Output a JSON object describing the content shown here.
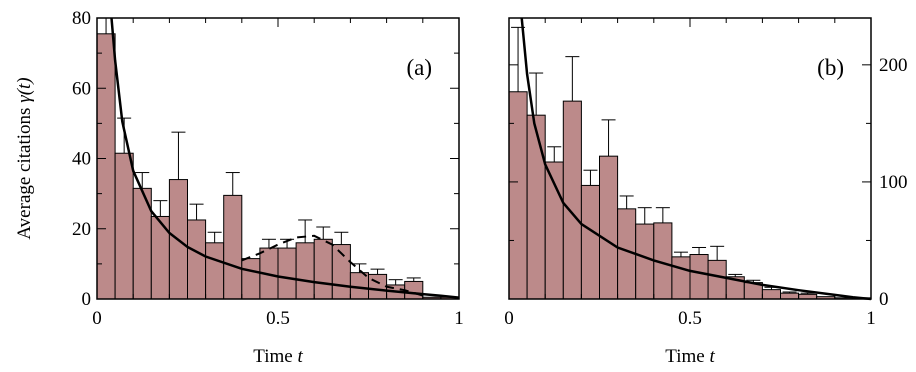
{
  "chart_data": [
    {
      "type": "bar",
      "panel_label": "(a)",
      "ylabel": "Average citations γ(t)",
      "xlabel": "Time t",
      "xlim": [
        0,
        1
      ],
      "ylim": [
        0,
        80
      ],
      "x_ticks": [
        0,
        0.5,
        1
      ],
      "x_tick_labels": [
        "0",
        "0.5",
        "1"
      ],
      "y_ticks": [
        0,
        20,
        40,
        60,
        80
      ],
      "y_tick_labels": [
        "0",
        "20",
        "40",
        "60",
        "80"
      ],
      "y_axis_side": "left",
      "bin_width": 0.05,
      "bin_starts": [
        0,
        0.05,
        0.1,
        0.15,
        0.2,
        0.25,
        0.3,
        0.35,
        0.4,
        0.45,
        0.5,
        0.55,
        0.6,
        0.65,
        0.7,
        0.75,
        0.8,
        0.85,
        0.9,
        0.95
      ],
      "values": [
        75.5,
        41.5,
        31.5,
        23.5,
        34,
        22.5,
        16,
        29.5,
        11.5,
        14.5,
        14.5,
        16,
        17,
        15.5,
        7.5,
        7,
        4,
        5,
        0.5,
        0.5
      ],
      "error_upper": [
        80,
        51.5,
        36,
        28,
        47.5,
        27,
        19,
        36,
        11.5,
        17,
        17,
        22.5,
        20.5,
        19,
        10,
        8.5,
        5.5,
        6,
        0.5,
        0.5
      ],
      "fit_curve": {
        "style": "solid",
        "x": [
          0.04,
          0.05,
          0.07,
          0.1,
          0.15,
          0.2,
          0.25,
          0.3,
          0.4,
          0.5,
          0.6,
          0.7,
          0.8,
          0.9,
          0.95,
          1.0
        ],
        "y": [
          80,
          68,
          50.5,
          36.5,
          25,
          18.8,
          14.8,
          12.1,
          8.6,
          6.4,
          4.8,
          3.5,
          2.4,
          1.4,
          0.9,
          0.4
        ]
      },
      "dashed_curve": {
        "style": "dashed",
        "x": [
          0.4,
          0.45,
          0.5,
          0.55,
          0.6,
          0.65,
          0.7,
          0.75,
          0.8,
          0.85,
          0.9
        ],
        "y": [
          11,
          13,
          15.5,
          17.5,
          18,
          15.5,
          10.5,
          6,
          3.5,
          2.5,
          1
        ]
      }
    },
    {
      "type": "bar",
      "panel_label": "(b)",
      "ylabel": "",
      "xlabel": "Time t",
      "xlim": [
        0,
        1
      ],
      "ylim": [
        0,
        240
      ],
      "x_ticks": [
        0,
        0.5,
        1
      ],
      "x_tick_labels": [
        "0",
        "0.5",
        "1"
      ],
      "y_ticks": [
        0,
        100,
        200
      ],
      "y_tick_labels": [
        "0",
        "100",
        "200"
      ],
      "y_axis_side": "right",
      "bin_width": 0.05,
      "bin_starts": [
        0,
        0.05,
        0.1,
        0.15,
        0.2,
        0.25,
        0.3,
        0.35,
        0.4,
        0.45,
        0.5,
        0.55,
        0.6,
        0.65,
        0.7,
        0.75,
        0.8,
        0.85,
        0.9,
        0.95
      ],
      "values": [
        177,
        157,
        117,
        169,
        97,
        122,
        77,
        64,
        65,
        36,
        38,
        33,
        19,
        14,
        8,
        5,
        4,
        2,
        1,
        1
      ],
      "error_upper": [
        232,
        193,
        130,
        207,
        110,
        153,
        88,
        78,
        78,
        40,
        44,
        45,
        21,
        16,
        10,
        6,
        5,
        2,
        1,
        1
      ],
      "fit_curve": {
        "style": "solid",
        "x": [
          0.035,
          0.05,
          0.07,
          0.1,
          0.15,
          0.2,
          0.3,
          0.4,
          0.5,
          0.6,
          0.7,
          0.8,
          0.9,
          0.95,
          1.0
        ],
        "y": [
          240,
          192,
          150,
          115,
          82,
          64,
          44,
          33,
          24,
          18,
          12,
          7.5,
          3.5,
          1.5,
          0
        ]
      }
    }
  ]
}
